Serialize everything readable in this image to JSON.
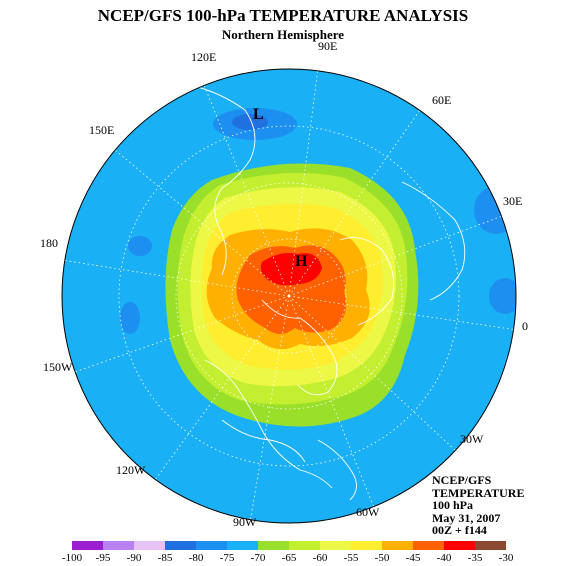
{
  "title": "NCEP/GFS 100-hPa TEMPERATURE ANALYSIS",
  "subtitle": "Northern Hemisphere",
  "longitude_labels": [
    "90E",
    "120E",
    "60E",
    "150E",
    "30E",
    "180",
    "0",
    "150W",
    "30W",
    "120W",
    "60W",
    "90W"
  ],
  "pressure_markers": [
    "L",
    "H"
  ],
  "info": {
    "model": "NCEP/GFS",
    "field": "TEMPERATURE",
    "level": "100 hPa",
    "date": "May 31, 2007",
    "run": "00Z + f144"
  },
  "colorbar": {
    "ticks": [
      "-100",
      "-95",
      "-90",
      "-85",
      "-80",
      "-75",
      "-70",
      "-65",
      "-60",
      "-55",
      "-50",
      "-45",
      "-40",
      "-35",
      "-30"
    ],
    "colors": [
      "#9b1fd0",
      "#b880f0",
      "#e5c3f5",
      "#2070e0",
      "#1d8ff0",
      "#1ab0f5",
      "#9ae02a",
      "#c4ef30",
      "#edf745",
      "#ffee30",
      "#ffb000",
      "#ff6000",
      "#ff0000",
      "#8b4a30",
      "#808080"
    ]
  }
}
